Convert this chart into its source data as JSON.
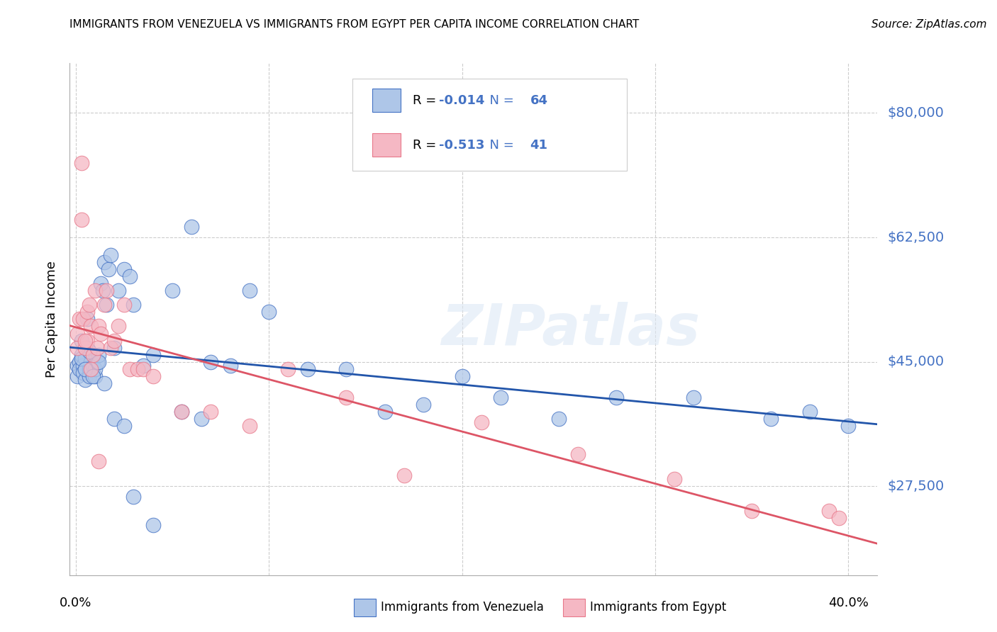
{
  "title": "IMMIGRANTS FROM VENEZUELA VS IMMIGRANTS FROM EGYPT PER CAPITA INCOME CORRELATION CHART",
  "source": "Source: ZipAtlas.com",
  "ylabel": "Per Capita Income",
  "ytick_labels": [
    "$80,000",
    "$62,500",
    "$45,000",
    "$27,500"
  ],
  "ytick_values": [
    80000,
    62500,
    45000,
    27500
  ],
  "ylim": [
    15000,
    87000
  ],
  "xlim": [
    -0.003,
    0.415
  ],
  "legend_r1_prefix": "R = ",
  "legend_r1_val": "-0.014",
  "legend_n1": "N = 64",
  "legend_r2_prefix": "R = ",
  "legend_r2_val": "-0.513",
  "legend_n2": "N = 41",
  "color_venezuela": "#aec6e8",
  "color_egypt": "#f5b8c4",
  "edge_color_venezuela": "#4472c4",
  "edge_color_egypt": "#e8788a",
  "line_color_venezuela": "#2255aa",
  "line_color_egypt": "#dd5566",
  "ytick_color": "#4472c4",
  "watermark": "ZIPatlas",
  "background_color": "#ffffff",
  "venezuela_x": [
    0.001,
    0.001,
    0.002,
    0.002,
    0.003,
    0.003,
    0.004,
    0.004,
    0.005,
    0.005,
    0.006,
    0.006,
    0.007,
    0.007,
    0.008,
    0.008,
    0.009,
    0.01,
    0.01,
    0.011,
    0.012,
    0.013,
    0.014,
    0.015,
    0.016,
    0.017,
    0.018,
    0.02,
    0.022,
    0.025,
    0.028,
    0.03,
    0.035,
    0.04,
    0.05,
    0.06,
    0.07,
    0.08,
    0.09,
    0.1,
    0.12,
    0.14,
    0.16,
    0.18,
    0.2,
    0.22,
    0.25,
    0.28,
    0.32,
    0.36,
    0.003,
    0.005,
    0.007,
    0.009,
    0.012,
    0.015,
    0.02,
    0.025,
    0.03,
    0.04,
    0.055,
    0.065,
    0.38,
    0.4
  ],
  "venezuela_y": [
    44500,
    43000,
    45000,
    44000,
    48000,
    46000,
    44500,
    43500,
    45500,
    42500,
    51000,
    47000,
    44000,
    43000,
    45000,
    44000,
    44500,
    43000,
    44000,
    45000,
    46000,
    56000,
    55000,
    59000,
    53000,
    58000,
    60000,
    47000,
    55000,
    58000,
    57000,
    53000,
    44500,
    46000,
    55000,
    64000,
    45000,
    44500,
    55000,
    52000,
    44000,
    44000,
    38000,
    39000,
    43000,
    40000,
    37000,
    40000,
    40000,
    37000,
    45500,
    44000,
    46500,
    43000,
    45000,
    42000,
    37000,
    36000,
    26000,
    22000,
    38000,
    37000,
    38000,
    36000
  ],
  "egypt_x": [
    0.001,
    0.001,
    0.002,
    0.003,
    0.004,
    0.005,
    0.006,
    0.006,
    0.007,
    0.008,
    0.009,
    0.01,
    0.011,
    0.012,
    0.013,
    0.015,
    0.016,
    0.018,
    0.02,
    0.022,
    0.025,
    0.028,
    0.032,
    0.035,
    0.04,
    0.055,
    0.07,
    0.09,
    0.11,
    0.14,
    0.17,
    0.21,
    0.26,
    0.31,
    0.35,
    0.003,
    0.005,
    0.008,
    0.012,
    0.39,
    0.395
  ],
  "egypt_y": [
    47000,
    49000,
    51000,
    73000,
    51000,
    47000,
    52000,
    48000,
    53000,
    50000,
    46000,
    55000,
    47000,
    50000,
    49000,
    53000,
    55000,
    47000,
    48000,
    50000,
    53000,
    44000,
    44000,
    44000,
    43000,
    38000,
    38000,
    36000,
    44000,
    40000,
    29000,
    36500,
    32000,
    28500,
    24000,
    65000,
    48000,
    44000,
    31000,
    24000,
    23000
  ]
}
